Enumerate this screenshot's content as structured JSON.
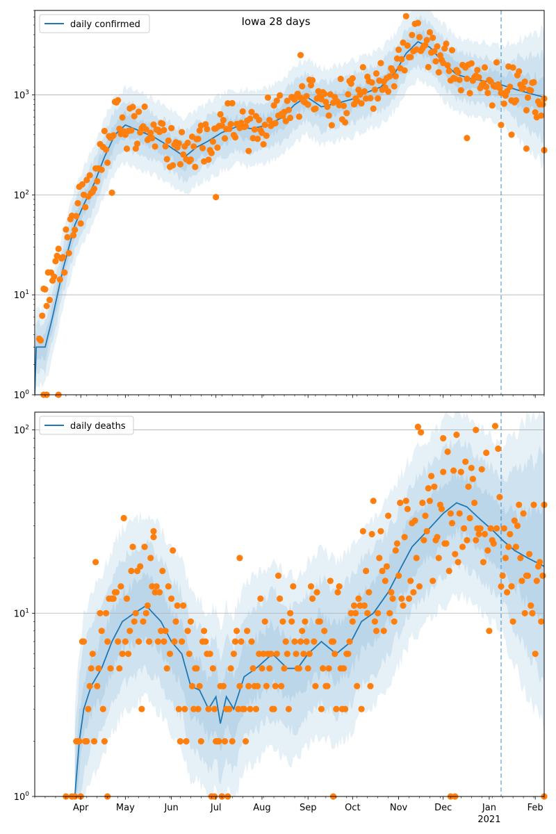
{
  "title": "Iowa 28 days",
  "colors": {
    "model_line": "#1f77b4",
    "observed_points": "#ff7f0e",
    "band": "#1f77b4",
    "grid": "#b0b0b0",
    "axes": "#000000"
  },
  "chart_data": [
    {
      "type": "line",
      "panel": "top",
      "title": "Iowa 28 days",
      "yscale": "log",
      "ylim": [
        1,
        7000
      ],
      "xlim": [
        "2020-03-01",
        "2021-02-07"
      ],
      "y_ticks": [
        {
          "value": 1,
          "label": "10^0"
        },
        {
          "value": 10,
          "label": "10^1"
        },
        {
          "value": 100,
          "label": "10^2"
        },
        {
          "value": 1000,
          "label": "10^3"
        }
      ],
      "grid": "horizontal at decades",
      "legend": {
        "placement": "top-left",
        "entries": [
          "daily confirmed"
        ]
      },
      "vline_date": "2021-01-09",
      "series": [
        {
          "name": "daily confirmed",
          "kind": "line",
          "points": [
            [
              "2020-03-01",
              1
            ],
            [
              "2020-03-02",
              3
            ],
            [
              "2020-03-08",
              3
            ],
            [
              "2020-03-13",
              6
            ],
            [
              "2020-03-20",
              18
            ],
            [
              "2020-03-28",
              50
            ],
            [
              "2020-04-03",
              80
            ],
            [
              "2020-04-10",
              130
            ],
            [
              "2020-04-17",
              240
            ],
            [
              "2020-04-24",
              400
            ],
            [
              "2020-05-01",
              500
            ],
            [
              "2020-05-10",
              440
            ],
            [
              "2020-05-20",
              380
            ],
            [
              "2020-05-30",
              310
            ],
            [
              "2020-06-10",
              240
            ],
            [
              "2020-06-18",
              300
            ],
            [
              "2020-06-25",
              340
            ],
            [
              "2020-07-05",
              420
            ],
            [
              "2020-07-15",
              480
            ],
            [
              "2020-07-25",
              460
            ],
            [
              "2020-08-05",
              500
            ],
            [
              "2020-08-15",
              600
            ],
            [
              "2020-08-23",
              800
            ],
            [
              "2020-08-31",
              960
            ],
            [
              "2020-09-10",
              760
            ],
            [
              "2020-09-20",
              820
            ],
            [
              "2020-09-30",
              900
            ],
            [
              "2020-10-10",
              1050
            ],
            [
              "2020-10-20",
              1200
            ],
            [
              "2020-10-30",
              1700
            ],
            [
              "2020-11-06",
              2600
            ],
            [
              "2020-11-14",
              3400
            ],
            [
              "2020-11-22",
              3000
            ],
            [
              "2020-11-30",
              2200
            ],
            [
              "2020-12-10",
              1600
            ],
            [
              "2020-12-20",
              1450
            ],
            [
              "2021-01-01",
              1350
            ],
            [
              "2021-01-10",
              1250
            ],
            [
              "2021-01-20",
              1120
            ],
            [
              "2021-02-01",
              1000
            ],
            [
              "2021-02-07",
              950
            ]
          ],
          "band_factors": [
            1.3,
            1.75,
            2.4
          ]
        },
        {
          "name": "observed daily confirmed",
          "kind": "scatter",
          "anchors": [
            [
              "2020-03-04",
              5
            ],
            [
              "2020-03-13",
              15
            ],
            [
              "2020-03-20",
              25
            ],
            [
              "2020-03-28",
              60
            ],
            [
              "2020-04-05",
              110
            ],
            [
              "2020-04-12",
              160
            ],
            [
              "2020-04-19",
              300
            ],
            [
              "2020-04-25",
              550
            ],
            [
              "2020-05-05",
              480
            ],
            [
              "2020-05-15",
              420
            ],
            [
              "2020-05-25",
              350
            ],
            [
              "2020-06-05",
              300
            ],
            [
              "2020-06-15",
              270
            ],
            [
              "2020-06-25",
              350
            ],
            [
              "2020-07-05",
              450
            ],
            [
              "2020-07-15",
              520
            ],
            [
              "2020-07-25",
              470
            ],
            [
              "2020-08-05",
              520
            ],
            [
              "2020-08-15",
              640
            ],
            [
              "2020-08-25",
              900
            ],
            [
              "2020-09-02",
              950
            ],
            [
              "2020-09-12",
              780
            ],
            [
              "2020-09-22",
              850
            ],
            [
              "2020-10-02",
              950
            ],
            [
              "2020-10-12",
              1100
            ],
            [
              "2020-10-22",
              1300
            ],
            [
              "2020-11-01",
              2000
            ],
            [
              "2020-11-08",
              3200
            ],
            [
              "2020-11-15",
              4000
            ],
            [
              "2020-11-22",
              3200
            ],
            [
              "2020-12-01",
              2200
            ],
            [
              "2020-12-10",
              1700
            ],
            [
              "2020-12-20",
              1500
            ],
            [
              "2021-01-01",
              1350
            ],
            [
              "2021-01-10",
              1250
            ],
            [
              "2021-01-20",
              1100
            ],
            [
              "2021-02-01",
              900
            ],
            [
              "2021-02-07",
              850
            ]
          ],
          "spread": 0.55,
          "extras": [
            [
              "2020-03-07",
              1
            ],
            [
              "2020-03-09",
              1
            ],
            [
              "2020-03-17",
              1
            ],
            [
              "2020-08-27",
              2500
            ],
            [
              "2020-07-01",
              95
            ],
            [
              "2020-04-22",
              105
            ],
            [
              "2021-01-09",
              500
            ],
            [
              "2021-01-16",
              400
            ],
            [
              "2021-01-26",
              290
            ],
            [
              "2020-12-17",
              370
            ],
            [
              "2021-02-07",
              280
            ]
          ]
        }
      ]
    },
    {
      "type": "line",
      "panel": "bottom",
      "yscale": "log",
      "ylim": [
        1,
        125
      ],
      "xlim": [
        "2020-03-01",
        "2021-02-07"
      ],
      "y_ticks": [
        {
          "value": 1,
          "label": "10^0"
        },
        {
          "value": 10,
          "label": "10^1"
        },
        {
          "value": 100,
          "label": "10^2"
        }
      ],
      "grid": "horizontal at decades",
      "legend": {
        "placement": "top-left",
        "entries": [
          "daily deaths"
        ]
      },
      "vline_date": "2021-01-09",
      "x_ticks": [
        {
          "date": "2020-04-01",
          "label": "Apr"
        },
        {
          "date": "2020-05-01",
          "label": "May"
        },
        {
          "date": "2020-06-01",
          "label": "Jun"
        },
        {
          "date": "2020-07-01",
          "label": "Jul"
        },
        {
          "date": "2020-08-01",
          "label": "Aug"
        },
        {
          "date": "2020-09-01",
          "label": "Sep"
        },
        {
          "date": "2020-10-01",
          "label": "Oct"
        },
        {
          "date": "2020-11-01",
          "label": "Nov"
        },
        {
          "date": "2020-12-01",
          "label": "Dec"
        },
        {
          "date": "2021-01-01",
          "label": "Jan"
        },
        {
          "date": "2021-02-01",
          "label": "Feb"
        }
      ],
      "year_label": {
        "date": "2021-01-01",
        "label": "2021"
      },
      "series": [
        {
          "name": "daily deaths",
          "kind": "line",
          "points": [
            [
              "2020-03-28",
              1
            ],
            [
              "2020-03-31",
              2
            ],
            [
              "2020-04-03",
              3
            ],
            [
              "2020-04-08",
              4
            ],
            [
              "2020-04-15",
              5
            ],
            [
              "2020-04-22",
              7
            ],
            [
              "2020-04-29",
              9
            ],
            [
              "2020-05-07",
              10
            ],
            [
              "2020-05-15",
              11
            ],
            [
              "2020-05-25",
              9
            ],
            [
              "2020-06-01",
              7
            ],
            [
              "2020-06-08",
              6
            ],
            [
              "2020-06-14",
              4
            ],
            [
              "2020-06-20",
              3.8
            ],
            [
              "2020-06-26",
              3
            ],
            [
              "2020-07-01",
              3.5
            ],
            [
              "2020-07-04",
              2.5
            ],
            [
              "2020-07-08",
              3.5
            ],
            [
              "2020-07-13",
              3
            ],
            [
              "2020-07-20",
              4.5
            ],
            [
              "2020-07-28",
              5
            ],
            [
              "2020-08-08",
              6
            ],
            [
              "2020-08-18",
              5
            ],
            [
              "2020-08-25",
              5
            ],
            [
              "2020-09-01",
              6
            ],
            [
              "2020-09-10",
              7
            ],
            [
              "2020-09-20",
              6
            ],
            [
              "2020-09-30",
              7
            ],
            [
              "2020-10-07",
              9
            ],
            [
              "2020-10-15",
              10
            ],
            [
              "2020-10-25",
              13
            ],
            [
              "2020-11-03",
              18
            ],
            [
              "2020-11-10",
              23
            ],
            [
              "2020-11-20",
              28
            ],
            [
              "2020-12-01",
              35
            ],
            [
              "2020-12-10",
              40
            ],
            [
              "2020-12-17",
              38
            ],
            [
              "2020-12-25",
              33
            ],
            [
              "2021-01-04",
              28
            ],
            [
              "2021-01-10",
              25
            ],
            [
              "2021-01-18",
              22
            ],
            [
              "2021-01-27",
              20
            ],
            [
              "2021-02-07",
              18
            ]
          ],
          "band_factors": [
            1.45,
            2.2,
            3.2
          ]
        },
        {
          "name": "observed daily deaths",
          "kind": "scatter",
          "anchors": [
            [
              "2020-03-28",
              2
            ],
            [
              "2020-04-05",
              3
            ],
            [
              "2020-04-12",
              5
            ],
            [
              "2020-04-20",
              7
            ],
            [
              "2020-04-28",
              10
            ],
            [
              "2020-05-08",
              12
            ],
            [
              "2020-05-18",
              13
            ],
            [
              "2020-05-28",
              10
            ],
            [
              "2020-06-08",
              7
            ],
            [
              "2020-06-18",
              5
            ],
            [
              "2020-06-28",
              4
            ],
            [
              "2020-07-08",
              3.5
            ],
            [
              "2020-07-18",
              4
            ],
            [
              "2020-07-28",
              5
            ],
            [
              "2020-08-08",
              6
            ],
            [
              "2020-08-18",
              6
            ],
            [
              "2020-08-28",
              7
            ],
            [
              "2020-09-08",
              8
            ],
            [
              "2020-09-18",
              7
            ],
            [
              "2020-09-28",
              8
            ],
            [
              "2020-10-08",
              10
            ],
            [
              "2020-10-18",
              12
            ],
            [
              "2020-10-28",
              17
            ],
            [
              "2020-11-08",
              24
            ],
            [
              "2020-11-18",
              30
            ],
            [
              "2020-11-28",
              38
            ],
            [
              "2020-12-08",
              45
            ],
            [
              "2020-12-18",
              42
            ],
            [
              "2020-12-28",
              35
            ],
            [
              "2021-01-08",
              28
            ],
            [
              "2021-01-18",
              24
            ],
            [
              "2021-01-28",
              21
            ],
            [
              "2021-02-07",
              19
            ]
          ],
          "spread": 1.1,
          "extras": [
            [
              "2020-03-22",
              1
            ],
            [
              "2020-03-26",
              1
            ],
            [
              "2020-04-19",
              1
            ],
            [
              "2020-06-30",
              1
            ],
            [
              "2020-07-05",
              1
            ],
            [
              "2020-09-18",
              1
            ],
            [
              "2020-12-06",
              1
            ],
            [
              "2020-12-09",
              1
            ],
            [
              "2021-02-07",
              1
            ],
            [
              "2020-07-17",
              20
            ],
            [
              "2020-05-20",
              26
            ],
            [
              "2020-12-01",
              90
            ],
            [
              "2020-12-23",
              100
            ]
          ]
        }
      ]
    }
  ]
}
